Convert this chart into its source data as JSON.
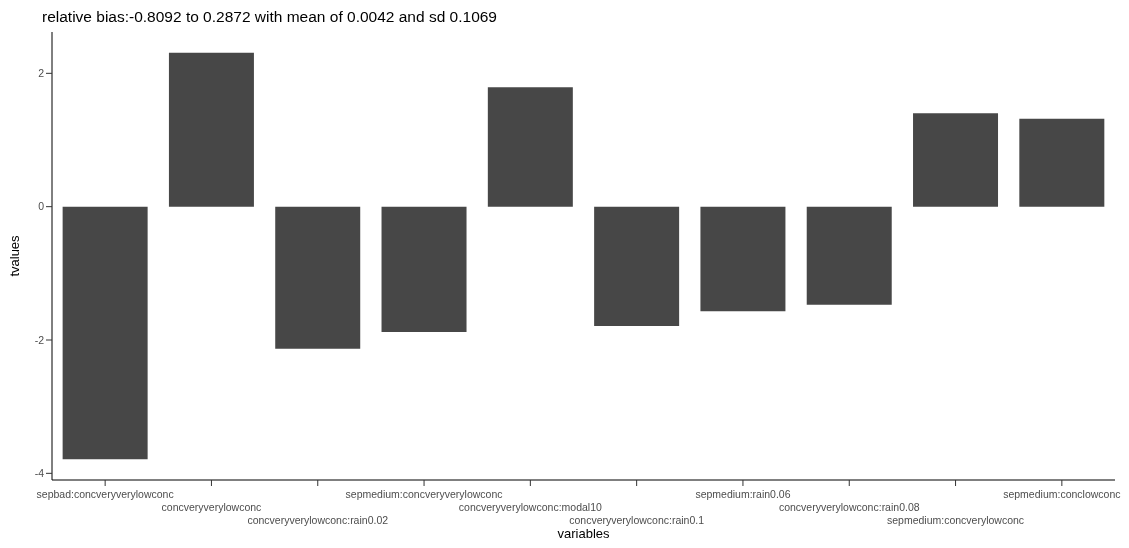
{
  "chart_data": {
    "type": "bar",
    "title": "relative bias:-0.8092 to 0.2872 with mean of 0.0042 and sd 0.1069",
    "xlabel": "variables",
    "ylabel": "tvalues",
    "categories": [
      "sepbad:concveryverylowconc",
      "concveryverylowconc",
      "concveryverylowconc:rain0.02",
      "sepmedium:concveryverylowconc",
      "concveryverylowconc:modal10",
      "concveryverylowconc:rain0.1",
      "sepmedium:rain0.06",
      "concveryverylowconc:rain0.08",
      "sepmedium:concverylowconc",
      "sepmedium:conclowconc"
    ],
    "values": [
      -3.79,
      2.31,
      -2.13,
      -1.88,
      1.79,
      -1.79,
      -1.57,
      -1.47,
      1.4,
      1.32
    ],
    "color": "#474747",
    "ylim": [
      -4.1,
      2.62
    ],
    "yticks": [
      -4,
      -2,
      0,
      2
    ],
    "grid": false,
    "legend": false
  }
}
